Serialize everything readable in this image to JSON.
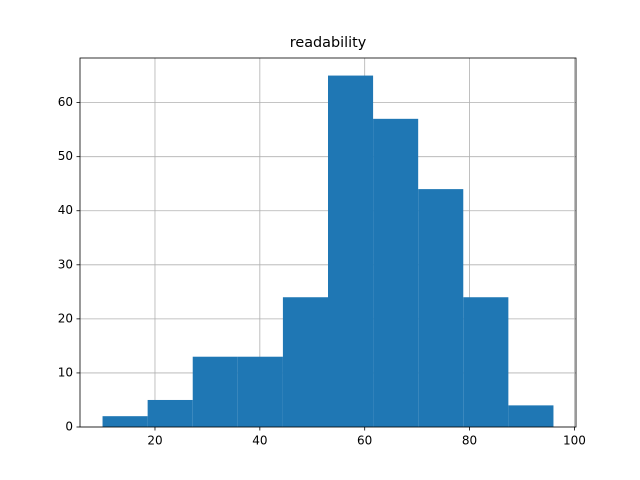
{
  "chart_data": {
    "type": "histogram",
    "title": "readability",
    "bins": [
      10,
      18.6,
      27.2,
      35.8,
      44.4,
      53,
      61.6,
      70.2,
      78.8,
      87.4,
      96
    ],
    "values": [
      2,
      5,
      13,
      13,
      24,
      65,
      57,
      44,
      24,
      4
    ],
    "color": "#1f77b4",
    "xlim": [
      5.7,
      100.3
    ],
    "xticks": [
      20,
      40,
      60,
      80,
      100
    ],
    "ylim": [
      0,
      68.25
    ],
    "yticks": [
      0,
      10,
      20,
      30,
      40,
      50,
      60
    ],
    "grid": true
  }
}
